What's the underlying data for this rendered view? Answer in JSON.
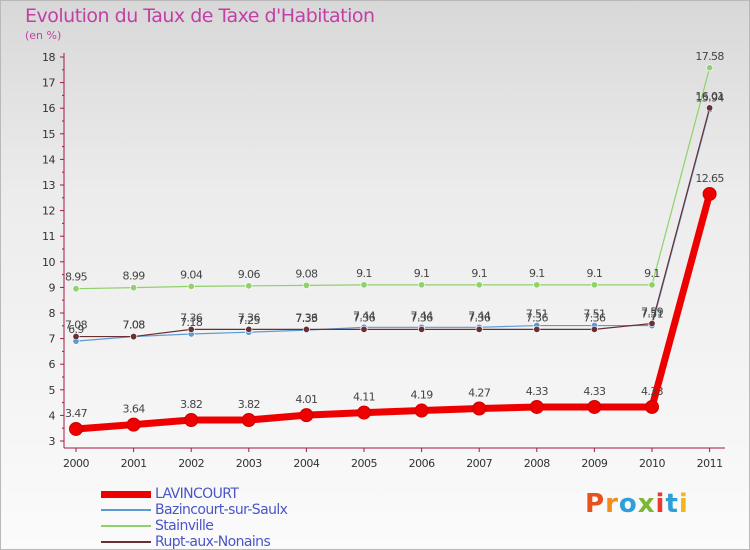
{
  "chart_data": {
    "type": "line",
    "title": "Evolution du Taux de Taxe d'Habitation",
    "subtitle": "(en %)",
    "x": [
      "2000",
      "2001",
      "2002",
      "2003",
      "2004",
      "2005",
      "2006",
      "2007",
      "2008",
      "2009",
      "2010",
      "2011"
    ],
    "ylim": [
      3,
      18
    ],
    "yticks": [
      3,
      4,
      5,
      6,
      7,
      8,
      9,
      10,
      11,
      12,
      13,
      14,
      15,
      16,
      17,
      18
    ],
    "grid": false,
    "legend_position": "bottom-left",
    "series": [
      {
        "name": "LAVINCOURT",
        "color": "#ee0000",
        "values": [
          3.47,
          3.64,
          3.82,
          3.82,
          4.01,
          4.11,
          4.19,
          4.27,
          4.33,
          4.33,
          4.33,
          12.65
        ],
        "labels": [
          "3.47",
          "3.64",
          "3.82",
          "3.82",
          "4.01",
          "4.11",
          "4.19",
          "4.27",
          "4.33",
          "4.33",
          "4.33",
          "12.65"
        ]
      },
      {
        "name": "Bazincourt-sur-Saulx",
        "color": "#5b9bd5",
        "values": [
          6.9,
          7.08,
          7.18,
          7.25,
          7.33,
          7.44,
          7.44,
          7.44,
          7.51,
          7.51,
          7.51,
          15.94
        ],
        "labels": [
          "6.9",
          "7.08",
          "7.18",
          "7.25",
          "7.33",
          "7.44",
          "7.44",
          "7.44",
          "7.51",
          "7.51",
          "7.51",
          "15.94"
        ]
      },
      {
        "name": "Stainville",
        "color": "#8fd16a",
        "values": [
          8.95,
          8.99,
          9.04,
          9.06,
          9.08,
          9.1,
          9.1,
          9.1,
          9.1,
          9.1,
          9.1,
          17.58
        ],
        "labels": [
          "8.95",
          "8.99",
          "9.04",
          "9.06",
          "9.08",
          "9.1",
          "9.1",
          "9.1",
          "9.1",
          "9.1",
          "9.1",
          "17.58"
        ]
      },
      {
        "name": "Rupt-aux-Nonains",
        "color": "#6b2f33",
        "values": [
          7.08,
          7.08,
          7.36,
          7.36,
          7.36,
          7.36,
          7.36,
          7.36,
          7.36,
          7.36,
          7.59,
          16.01
        ],
        "labels": [
          "7.08",
          "7.08",
          "7.36",
          "7.36",
          "7.36",
          "7.36",
          "7.36",
          "7.36",
          "7.36",
          "7.36",
          "7.59",
          "16.01"
        ]
      }
    ]
  },
  "logo": {
    "text": "Proxiti",
    "colors": [
      "#e8501e",
      "#f28c1e",
      "#2e9fd8",
      "#7ab833",
      "#e83a2e",
      "#2e9fd8",
      "#f2b61e"
    ]
  }
}
